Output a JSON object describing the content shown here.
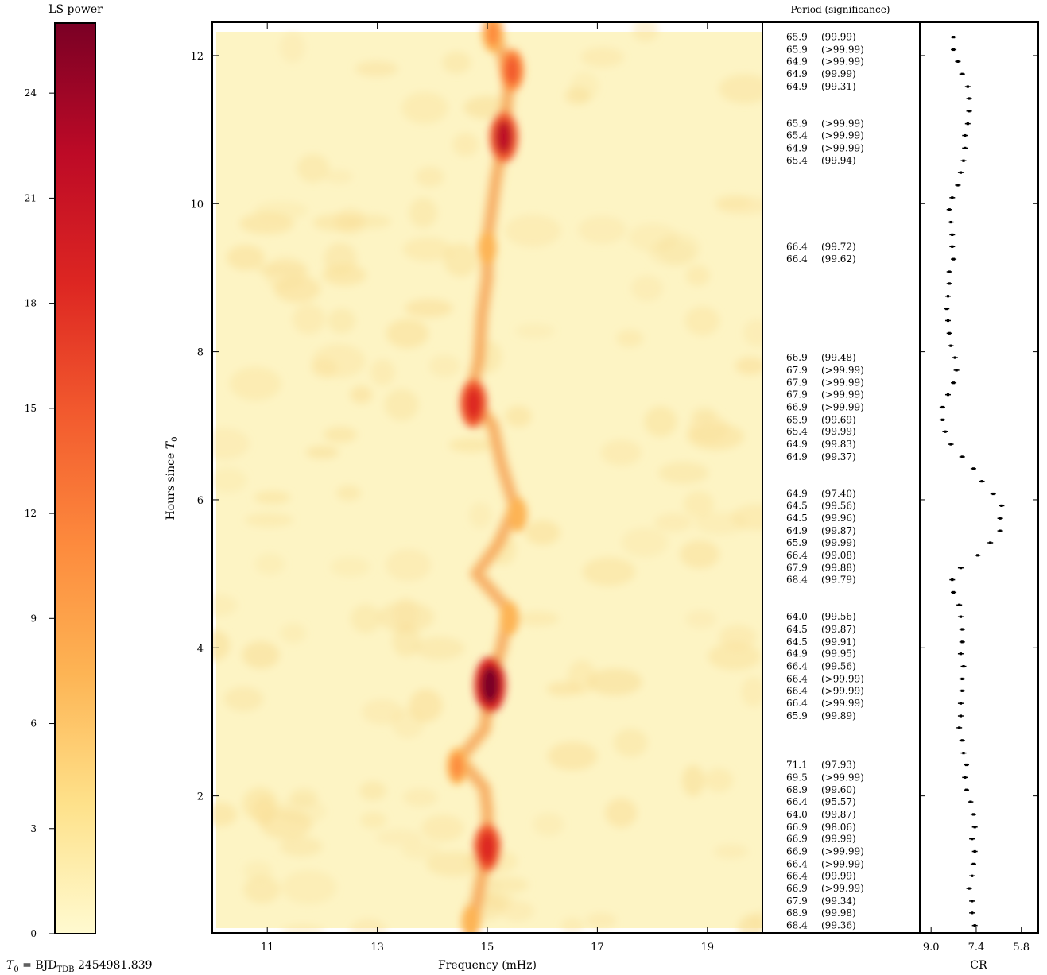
{
  "colorbar": {
    "title": "LS power",
    "ticks": [
      "0",
      "3",
      "6",
      "9",
      "12",
      "15",
      "18",
      "21",
      "24"
    ],
    "range": [
      0,
      26
    ],
    "colors": [
      "#fffad0",
      "#fee18a",
      "#fdb454",
      "#fd8a3d",
      "#f25a2e",
      "#dd2622",
      "#bd0a26",
      "#7a0025"
    ]
  },
  "t0_label": {
    "prefix": "T",
    "sub0": "0",
    "middle": " = BJD",
    "subTDB": "TDB",
    "suffix": " 2454981.839"
  },
  "periodogram": {
    "xlabel": "Frequency (mHz)",
    "ylabel_prefix": "Hours since ",
    "ylabel_sym": "T",
    "ylabel_sub": "0",
    "xticks": [
      "11",
      "13",
      "15",
      "17",
      "19"
    ],
    "yticks": [
      "2",
      "4",
      "6",
      "8",
      "10",
      "12"
    ]
  },
  "period_table": {
    "header": "Period (significance)",
    "rows": [
      {
        "hour": 12.25,
        "period": "65.9",
        "sig": "(99.99)"
      },
      {
        "hour": 12.08,
        "period": "65.9",
        "sig": "(>99.99)"
      },
      {
        "hour": 11.92,
        "period": "64.9",
        "sig": "(>99.99)"
      },
      {
        "hour": 11.75,
        "period": "64.9",
        "sig": "(99.99)"
      },
      {
        "hour": 11.58,
        "period": "64.9",
        "sig": "(99.31)"
      },
      {
        "hour": 11.08,
        "period": "65.9",
        "sig": "(>99.99)"
      },
      {
        "hour": 10.92,
        "period": "65.4",
        "sig": "(>99.99)"
      },
      {
        "hour": 10.75,
        "period": "64.9",
        "sig": "(>99.99)"
      },
      {
        "hour": 10.58,
        "period": "65.4",
        "sig": "(99.94)"
      },
      {
        "hour": 9.42,
        "period": "66.4",
        "sig": "(99.72)"
      },
      {
        "hour": 9.25,
        "period": "66.4",
        "sig": "(99.62)"
      },
      {
        "hour": 7.92,
        "period": "66.9",
        "sig": "(99.48)"
      },
      {
        "hour": 7.75,
        "period": "67.9",
        "sig": "(>99.99)"
      },
      {
        "hour": 7.58,
        "period": "67.9",
        "sig": "(>99.99)"
      },
      {
        "hour": 7.42,
        "period": "67.9",
        "sig": "(>99.99)"
      },
      {
        "hour": 7.25,
        "period": "66.9",
        "sig": "(>99.99)"
      },
      {
        "hour": 7.08,
        "period": "65.9",
        "sig": "(99.69)"
      },
      {
        "hour": 6.92,
        "period": "65.4",
        "sig": "(99.99)"
      },
      {
        "hour": 6.75,
        "period": "64.9",
        "sig": "(99.83)"
      },
      {
        "hour": 6.58,
        "period": "64.9",
        "sig": "(99.37)"
      },
      {
        "hour": 6.08,
        "period": "64.9",
        "sig": "(97.40)"
      },
      {
        "hour": 5.92,
        "period": "64.5",
        "sig": "(99.56)"
      },
      {
        "hour": 5.75,
        "period": "64.5",
        "sig": "(99.96)"
      },
      {
        "hour": 5.58,
        "period": "64.9",
        "sig": "(99.87)"
      },
      {
        "hour": 5.42,
        "period": "65.9",
        "sig": "(99.99)"
      },
      {
        "hour": 5.25,
        "period": "66.4",
        "sig": "(99.08)"
      },
      {
        "hour": 5.08,
        "period": "67.9",
        "sig": "(99.88)"
      },
      {
        "hour": 4.92,
        "period": "68.4",
        "sig": "(99.79)"
      },
      {
        "hour": 4.42,
        "period": "64.0",
        "sig": "(99.56)"
      },
      {
        "hour": 4.25,
        "period": "64.5",
        "sig": "(99.87)"
      },
      {
        "hour": 4.08,
        "period": "64.5",
        "sig": "(99.91)"
      },
      {
        "hour": 3.92,
        "period": "64.9",
        "sig": "(99.95)"
      },
      {
        "hour": 3.75,
        "period": "66.4",
        "sig": "(99.56)"
      },
      {
        "hour": 3.58,
        "period": "66.4",
        "sig": "(>99.99)"
      },
      {
        "hour": 3.42,
        "period": "66.4",
        "sig": "(>99.99)"
      },
      {
        "hour": 3.25,
        "period": "66.4",
        "sig": "(>99.99)"
      },
      {
        "hour": 3.08,
        "period": "65.9",
        "sig": "(99.89)"
      },
      {
        "hour": 2.42,
        "period": "71.1",
        "sig": "(97.93)"
      },
      {
        "hour": 2.25,
        "period": "69.5",
        "sig": "(>99.99)"
      },
      {
        "hour": 2.08,
        "period": "68.9",
        "sig": "(99.60)"
      },
      {
        "hour": 1.92,
        "period": "66.4",
        "sig": "(95.57)"
      },
      {
        "hour": 1.75,
        "period": "64.0",
        "sig": "(99.87)"
      },
      {
        "hour": 1.58,
        "period": "66.9",
        "sig": "(98.06)"
      },
      {
        "hour": 1.42,
        "period": "66.9",
        "sig": "(99.99)"
      },
      {
        "hour": 1.25,
        "period": "66.9",
        "sig": "(>99.99)"
      },
      {
        "hour": 1.08,
        "period": "66.4",
        "sig": "(>99.99)"
      },
      {
        "hour": 0.92,
        "period": "66.4",
        "sig": "(99.99)"
      },
      {
        "hour": 0.75,
        "period": "66.9",
        "sig": "(>99.99)"
      },
      {
        "hour": 0.58,
        "period": "67.9",
        "sig": "(99.34)"
      },
      {
        "hour": 0.42,
        "period": "68.9",
        "sig": "(99.98)"
      },
      {
        "hour": 0.25,
        "period": "68.4",
        "sig": "(99.36)"
      }
    ]
  },
  "chart_data": [
    {
      "type": "heatmap",
      "title": "",
      "xlabel": "Frequency (mHz)",
      "ylabel": "Hours since T0",
      "xlim": [
        10,
        20
      ],
      "ylim": [
        0.15,
        12.45
      ],
      "colorbar_label": "LS power",
      "colorbar_range": [
        0,
        26
      ],
      "ridge": [
        {
          "t": 0.3,
          "f": 14.75
        },
        {
          "t": 0.7,
          "f": 14.85
        },
        {
          "t": 1.3,
          "f": 15.0
        },
        {
          "t": 1.8,
          "f": 15.0
        },
        {
          "t": 2.1,
          "f": 14.95
        },
        {
          "t": 2.5,
          "f": 14.5
        },
        {
          "t": 2.9,
          "f": 14.95
        },
        {
          "t": 3.5,
          "f": 15.05
        },
        {
          "t": 4.0,
          "f": 15.25
        },
        {
          "t": 4.5,
          "f": 15.4
        },
        {
          "t": 5.0,
          "f": 14.8
        },
        {
          "t": 5.4,
          "f": 15.2
        },
        {
          "t": 5.9,
          "f": 15.5
        },
        {
          "t": 6.5,
          "f": 15.25
        },
        {
          "t": 7.0,
          "f": 15.1
        },
        {
          "t": 7.4,
          "f": 14.7
        },
        {
          "t": 7.9,
          "f": 14.85
        },
        {
          "t": 8.5,
          "f": 14.9
        },
        {
          "t": 9.0,
          "f": 15.0
        },
        {
          "t": 9.5,
          "f": 15.0
        },
        {
          "t": 10.3,
          "f": 15.15
        },
        {
          "t": 10.9,
          "f": 15.3
        },
        {
          "t": 11.7,
          "f": 15.4
        },
        {
          "t": 12.3,
          "f": 15.15
        }
      ],
      "peaks": [
        {
          "t": 3.5,
          "f": 15.05,
          "power": 26
        },
        {
          "t": 7.3,
          "f": 14.75,
          "power": 20
        },
        {
          "t": 10.9,
          "f": 15.3,
          "power": 22
        },
        {
          "t": 1.3,
          "f": 15.0,
          "power": 20
        },
        {
          "t": 11.8,
          "f": 15.45,
          "power": 15
        },
        {
          "t": 12.3,
          "f": 15.1,
          "power": 12
        },
        {
          "t": 2.4,
          "f": 14.45,
          "power": 11
        },
        {
          "t": 9.4,
          "f": 15.0,
          "power": 8
        },
        {
          "t": 4.4,
          "f": 15.4,
          "power": 9
        },
        {
          "t": 5.8,
          "f": 15.55,
          "power": 9
        },
        {
          "t": 0.3,
          "f": 14.7,
          "power": 8
        }
      ]
    },
    {
      "type": "scatter",
      "xlabel": "CR",
      "x_axis_reversed": true,
      "xticks": [
        "9.0",
        "7.4",
        "5.8"
      ],
      "xlim": [
        9.4,
        5.2
      ],
      "ylim": [
        0.15,
        12.45
      ],
      "series": [
        {
          "points": [
            {
              "t": 12.25,
              "cr": 8.2
            },
            {
              "t": 12.08,
              "cr": 8.2
            },
            {
              "t": 11.92,
              "cr": 8.05
            },
            {
              "t": 11.75,
              "cr": 7.9
            },
            {
              "t": 11.58,
              "cr": 7.7
            },
            {
              "t": 11.42,
              "cr": 7.65
            },
            {
              "t": 11.25,
              "cr": 7.65
            },
            {
              "t": 11.08,
              "cr": 7.7
            },
            {
              "t": 10.92,
              "cr": 7.8
            },
            {
              "t": 10.75,
              "cr": 7.8
            },
            {
              "t": 10.58,
              "cr": 7.85
            },
            {
              "t": 10.42,
              "cr": 7.95
            },
            {
              "t": 10.25,
              "cr": 8.05
            },
            {
              "t": 10.08,
              "cr": 8.25
            },
            {
              "t": 9.92,
              "cr": 8.35
            },
            {
              "t": 9.75,
              "cr": 8.3
            },
            {
              "t": 9.58,
              "cr": 8.25
            },
            {
              "t": 9.42,
              "cr": 8.25
            },
            {
              "t": 9.25,
              "cr": 8.2
            },
            {
              "t": 9.08,
              "cr": 8.35
            },
            {
              "t": 8.92,
              "cr": 8.35
            },
            {
              "t": 8.75,
              "cr": 8.4
            },
            {
              "t": 8.58,
              "cr": 8.45
            },
            {
              "t": 8.42,
              "cr": 8.4
            },
            {
              "t": 8.25,
              "cr": 8.35
            },
            {
              "t": 8.08,
              "cr": 8.3
            },
            {
              "t": 7.92,
              "cr": 8.15
            },
            {
              "t": 7.75,
              "cr": 8.1
            },
            {
              "t": 7.58,
              "cr": 8.2
            },
            {
              "t": 7.42,
              "cr": 8.4
            },
            {
              "t": 7.25,
              "cr": 8.6
            },
            {
              "t": 7.08,
              "cr": 8.6
            },
            {
              "t": 6.92,
              "cr": 8.5
            },
            {
              "t": 6.75,
              "cr": 8.3
            },
            {
              "t": 6.58,
              "cr": 7.9
            },
            {
              "t": 6.42,
              "cr": 7.5
            },
            {
              "t": 6.25,
              "cr": 7.2
            },
            {
              "t": 6.08,
              "cr": 6.8
            },
            {
              "t": 5.92,
              "cr": 6.5
            },
            {
              "t": 5.75,
              "cr": 6.55
            },
            {
              "t": 5.58,
              "cr": 6.55
            },
            {
              "t": 5.42,
              "cr": 6.9
            },
            {
              "t": 5.25,
              "cr": 7.35
            },
            {
              "t": 5.08,
              "cr": 7.95
            },
            {
              "t": 4.92,
              "cr": 8.25
            },
            {
              "t": 4.75,
              "cr": 8.2
            },
            {
              "t": 4.58,
              "cr": 8.0
            },
            {
              "t": 4.42,
              "cr": 7.95
            },
            {
              "t": 4.25,
              "cr": 7.9
            },
            {
              "t": 4.08,
              "cr": 7.9
            },
            {
              "t": 3.92,
              "cr": 7.95
            },
            {
              "t": 3.75,
              "cr": 7.85
            },
            {
              "t": 3.58,
              "cr": 7.9
            },
            {
              "t": 3.42,
              "cr": 7.9
            },
            {
              "t": 3.25,
              "cr": 7.95
            },
            {
              "t": 3.08,
              "cr": 7.95
            },
            {
              "t": 2.92,
              "cr": 8.0
            },
            {
              "t": 2.75,
              "cr": 7.9
            },
            {
              "t": 2.58,
              "cr": 7.85
            },
            {
              "t": 2.42,
              "cr": 7.75
            },
            {
              "t": 2.25,
              "cr": 7.8
            },
            {
              "t": 2.08,
              "cr": 7.75
            },
            {
              "t": 1.92,
              "cr": 7.6
            },
            {
              "t": 1.75,
              "cr": 7.5
            },
            {
              "t": 1.58,
              "cr": 7.45
            },
            {
              "t": 1.42,
              "cr": 7.55
            },
            {
              "t": 1.25,
              "cr": 7.45
            },
            {
              "t": 1.08,
              "cr": 7.5
            },
            {
              "t": 0.92,
              "cr": 7.55
            },
            {
              "t": 0.75,
              "cr": 7.65
            },
            {
              "t": 0.58,
              "cr": 7.55
            },
            {
              "t": 0.42,
              "cr": 7.55
            },
            {
              "t": 0.25,
              "cr": 7.45
            }
          ]
        }
      ]
    }
  ]
}
